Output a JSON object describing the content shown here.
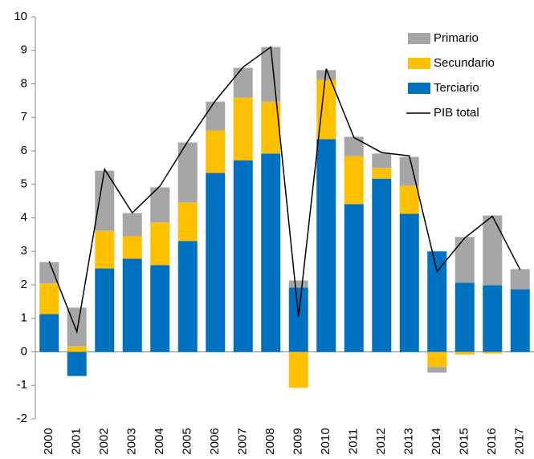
{
  "chart_data": {
    "type": "bar",
    "stacked": true,
    "categories": [
      "2000",
      "2001",
      "2002",
      "2003",
      "2004",
      "2005",
      "2006",
      "2007",
      "2008",
      "2009",
      "2010",
      "2011",
      "2012",
      "2013",
      "2014",
      "2015",
      "2016",
      "2017"
    ],
    "series": [
      {
        "name": "Primario",
        "color": "#a6a6a6",
        "values": [
          0.64,
          1.15,
          1.79,
          0.69,
          1.05,
          1.79,
          0.86,
          0.89,
          1.63,
          0.21,
          0.29,
          0.58,
          0.43,
          0.86,
          -0.17,
          1.37,
          2.08,
          0.6
        ]
      },
      {
        "name": "Secundario",
        "color": "#ffc000",
        "values": [
          0.91,
          0.17,
          1.13,
          0.67,
          1.27,
          1.15,
          1.27,
          1.87,
          1.55,
          -1.07,
          1.77,
          1.43,
          0.32,
          0.84,
          -0.45,
          -0.08,
          -0.05,
          0
        ]
      },
      {
        "name": "Terciario",
        "color": "#0070c0",
        "values": [
          1.13,
          -0.72,
          2.49,
          2.78,
          2.59,
          3.31,
          5.34,
          5.72,
          5.92,
          1.92,
          6.35,
          4.41,
          5.17,
          4.12,
          3.0,
          2.06,
          1.99,
          1.87
        ]
      },
      {
        "name": "PIB total",
        "color": "#000000",
        "type": "line",
        "values": [
          2.7,
          0.6,
          5.45,
          4.15,
          4.95,
          6.28,
          7.5,
          8.5,
          9.1,
          1.05,
          8.45,
          6.4,
          5.95,
          5.85,
          2.4,
          3.4,
          4.05,
          2.45
        ]
      }
    ],
    "ylim": [
      -2,
      10
    ],
    "yticks": [
      -2,
      -1,
      0,
      1,
      2,
      3,
      4,
      5,
      6,
      7,
      8,
      9,
      10
    ],
    "grid": false,
    "legend": "top-right"
  }
}
